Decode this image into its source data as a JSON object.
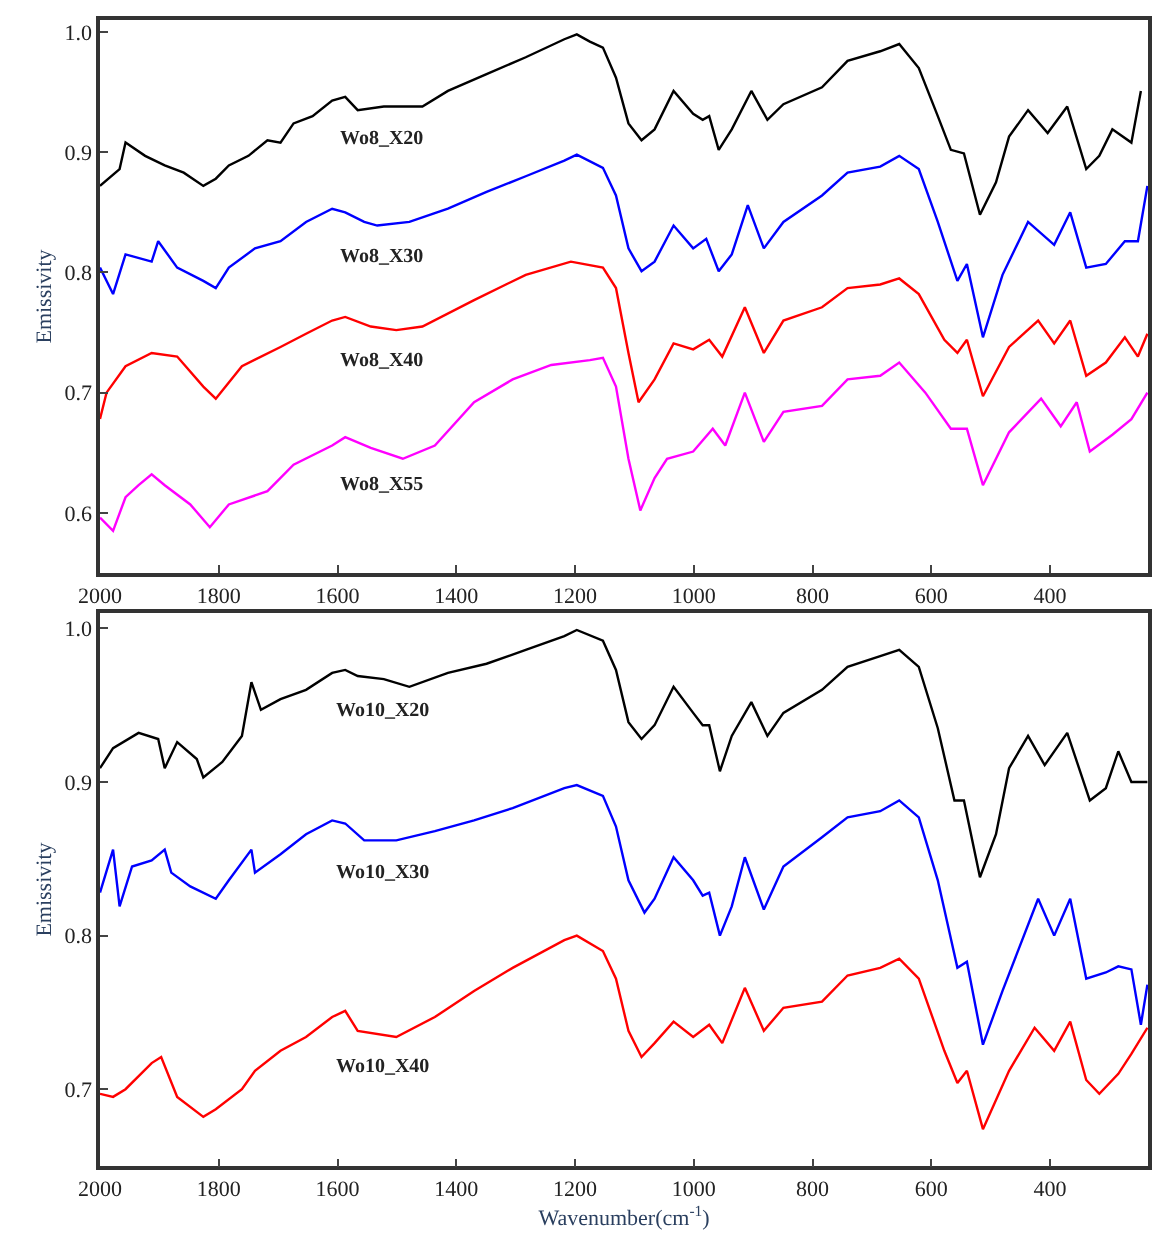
{
  "chart_data": [
    {
      "type": "line",
      "ylabel": "Emissivity",
      "xlim": [
        2000,
        235
      ],
      "xticks": [
        2000,
        1800,
        1600,
        1400,
        1200,
        1000,
        800,
        600,
        400
      ],
      "ylim": [
        0.55,
        1.01
      ],
      "yticks": [
        {
          "value": 0.6,
          "label": "0.6"
        },
        {
          "value": 0.7,
          "label": "0.7"
        },
        {
          "value": 0.8,
          "label": "0.8"
        },
        {
          "value": 0.9,
          "label": "0.9"
        },
        {
          "value": 1.0,
          "label": "1.0"
        }
      ],
      "legend": false,
      "series": [
        {
          "name": "Wo8_X20",
          "color": "#000000",
          "x": [
            2000,
            1967,
            1957,
            1924,
            1891,
            1859,
            1826,
            1805,
            1783,
            1750,
            1718,
            1696,
            1674,
            1642,
            1609,
            1587,
            1566,
            1522,
            1457,
            1414,
            1349,
            1283,
            1218,
            1197,
            1175,
            1153,
            1131,
            1110,
            1088,
            1066,
            1034,
            1001,
            985,
            974,
            958,
            936,
            903,
            876,
            849,
            784,
            741,
            686,
            654,
            621,
            589,
            567,
            545,
            518,
            491,
            469,
            437,
            404,
            371,
            339,
            317,
            295,
            263,
            247
          ],
          "values": [
            0.872,
            0.886,
            0.908,
            0.897,
            0.889,
            0.883,
            0.872,
            0.878,
            0.889,
            0.897,
            0.91,
            0.908,
            0.924,
            0.93,
            0.943,
            0.946,
            0.935,
            0.938,
            0.938,
            0.951,
            0.965,
            0.979,
            0.994,
            0.998,
            0.992,
            0.987,
            0.962,
            0.924,
            0.91,
            0.919,
            0.951,
            0.932,
            0.927,
            0.93,
            0.902,
            0.919,
            0.951,
            0.927,
            0.94,
            0.954,
            0.976,
            0.984,
            0.99,
            0.97,
            0.93,
            0.902,
            0.899,
            0.848,
            0.875,
            0.913,
            0.935,
            0.916,
            0.938,
            0.886,
            0.897,
            0.919,
            0.908,
            0.951
          ]
        },
        {
          "name": "Wo8_X30",
          "color": "#0000ff",
          "x": [
            2000,
            1978,
            1957,
            1913,
            1902,
            1870,
            1826,
            1805,
            1783,
            1739,
            1696,
            1653,
            1609,
            1587,
            1555,
            1533,
            1479,
            1414,
            1349,
            1283,
            1218,
            1197,
            1153,
            1131,
            1110,
            1088,
            1066,
            1034,
            1001,
            979,
            958,
            936,
            909,
            882,
            849,
            784,
            741,
            686,
            654,
            621,
            589,
            556,
            540,
            513,
            480,
            437,
            393,
            366,
            339,
            306,
            274,
            252,
            236
          ],
          "values": [
            0.804,
            0.782,
            0.815,
            0.809,
            0.826,
            0.804,
            0.793,
            0.787,
            0.804,
            0.82,
            0.826,
            0.842,
            0.853,
            0.85,
            0.842,
            0.839,
            0.842,
            0.853,
            0.867,
            0.88,
            0.893,
            0.898,
            0.887,
            0.864,
            0.82,
            0.801,
            0.809,
            0.839,
            0.82,
            0.828,
            0.801,
            0.815,
            0.856,
            0.82,
            0.842,
            0.864,
            0.883,
            0.888,
            0.897,
            0.886,
            0.842,
            0.793,
            0.807,
            0.746,
            0.798,
            0.842,
            0.823,
            0.85,
            0.804,
            0.807,
            0.826,
            0.826,
            0.872
          ]
        },
        {
          "name": "Wo8_X40",
          "color": "#ff0000",
          "x": [
            2000,
            1989,
            1957,
            1913,
            1870,
            1826,
            1805,
            1761,
            1696,
            1653,
            1609,
            1587,
            1544,
            1501,
            1457,
            1370,
            1283,
            1207,
            1153,
            1131,
            1110,
            1093,
            1066,
            1034,
            1001,
            974,
            952,
            914,
            882,
            849,
            784,
            741,
            686,
            654,
            621,
            578,
            556,
            540,
            513,
            469,
            420,
            393,
            366,
            339,
            306,
            274,
            252,
            236
          ],
          "values": [
            0.678,
            0.7,
            0.722,
            0.733,
            0.73,
            0.705,
            0.695,
            0.722,
            0.738,
            0.749,
            0.76,
            0.763,
            0.755,
            0.752,
            0.755,
            0.777,
            0.798,
            0.809,
            0.804,
            0.787,
            0.733,
            0.692,
            0.711,
            0.741,
            0.736,
            0.744,
            0.73,
            0.771,
            0.733,
            0.76,
            0.771,
            0.787,
            0.79,
            0.795,
            0.782,
            0.744,
            0.733,
            0.744,
            0.697,
            0.738,
            0.76,
            0.741,
            0.76,
            0.714,
            0.725,
            0.746,
            0.73,
            0.749
          ]
        },
        {
          "name": "Wo8_X55",
          "color": "#ff00ff",
          "x": [
            2000,
            1978,
            1957,
            1935,
            1913,
            1891,
            1848,
            1815,
            1783,
            1718,
            1674,
            1609,
            1587,
            1544,
            1490,
            1436,
            1370,
            1305,
            1240,
            1175,
            1153,
            1131,
            1110,
            1090,
            1066,
            1045,
            1001,
            968,
            947,
            914,
            882,
            849,
            784,
            741,
            686,
            654,
            610,
            567,
            540,
            513,
            469,
            415,
            382,
            355,
            333,
            295,
            263,
            236
          ],
          "values": [
            0.596,
            0.585,
            0.613,
            0.623,
            0.632,
            0.623,
            0.607,
            0.588,
            0.607,
            0.618,
            0.64,
            0.656,
            0.663,
            0.654,
            0.645,
            0.656,
            0.692,
            0.711,
            0.723,
            0.727,
            0.729,
            0.705,
            0.645,
            0.602,
            0.629,
            0.645,
            0.651,
            0.67,
            0.656,
            0.7,
            0.659,
            0.684,
            0.689,
            0.711,
            0.714,
            0.725,
            0.7,
            0.67,
            0.67,
            0.623,
            0.667,
            0.695,
            0.672,
            0.692,
            0.651,
            0.665,
            0.678,
            0.7
          ]
        }
      ]
    },
    {
      "type": "line",
      "ylabel": "Emissivity",
      "xlabel": "Wavenumber(cm$^{-1}$)",
      "xlim": [
        2000,
        235
      ],
      "xticks": [
        2000,
        1800,
        1600,
        1400,
        1200,
        1000,
        800,
        600,
        400
      ],
      "ylim": [
        0.65,
        1.01
      ],
      "yticks": [
        {
          "value": 0.7,
          "label": "0.7"
        },
        {
          "value": 0.8,
          "label": "0.8"
        },
        {
          "value": 0.9,
          "label": "0.9"
        },
        {
          "value": 1.0,
          "label": "1.0"
        }
      ],
      "legend": false,
      "series": [
        {
          "name": "Wo10_X20",
          "color": "#000000",
          "x": [
            2000,
            1978,
            1935,
            1902,
            1891,
            1870,
            1837,
            1826,
            1794,
            1761,
            1745,
            1729,
            1696,
            1653,
            1609,
            1587,
            1566,
            1522,
            1479,
            1414,
            1349,
            1283,
            1218,
            1197,
            1153,
            1131,
            1110,
            1088,
            1066,
            1034,
            1001,
            985,
            974,
            956,
            936,
            903,
            876,
            849,
            784,
            741,
            686,
            654,
            621,
            589,
            561,
            545,
            518,
            491,
            469,
            437,
            409,
            371,
            333,
            306,
            285,
            263,
            236
          ],
          "values": [
            0.909,
            0.922,
            0.932,
            0.928,
            0.909,
            0.926,
            0.915,
            0.903,
            0.913,
            0.93,
            0.965,
            0.947,
            0.954,
            0.96,
            0.971,
            0.973,
            0.969,
            0.967,
            0.962,
            0.971,
            0.977,
            0.986,
            0.995,
            0.999,
            0.992,
            0.973,
            0.939,
            0.928,
            0.937,
            0.962,
            0.945,
            0.937,
            0.937,
            0.907,
            0.93,
            0.952,
            0.93,
            0.945,
            0.96,
            0.975,
            0.982,
            0.986,
            0.975,
            0.935,
            0.888,
            0.888,
            0.838,
            0.866,
            0.909,
            0.93,
            0.911,
            0.932,
            0.888,
            0.896,
            0.92,
            0.9,
            0.9
          ]
        },
        {
          "name": "Wo10_X30",
          "color": "#0000ff",
          "x": [
            2000,
            1978,
            1967,
            1946,
            1913,
            1891,
            1880,
            1848,
            1805,
            1783,
            1745,
            1739,
            1696,
            1653,
            1609,
            1587,
            1555,
            1501,
            1436,
            1370,
            1305,
            1218,
            1197,
            1153,
            1131,
            1110,
            1083,
            1066,
            1034,
            1001,
            985,
            974,
            956,
            936,
            914,
            882,
            849,
            784,
            741,
            686,
            654,
            621,
            589,
            556,
            540,
            513,
            480,
            420,
            393,
            366,
            339,
            306,
            285,
            263,
            247,
            236
          ],
          "values": [
            0.828,
            0.856,
            0.819,
            0.845,
            0.849,
            0.856,
            0.841,
            0.832,
            0.824,
            0.836,
            0.856,
            0.841,
            0.853,
            0.866,
            0.875,
            0.873,
            0.862,
            0.862,
            0.868,
            0.875,
            0.883,
            0.896,
            0.898,
            0.891,
            0.871,
            0.836,
            0.815,
            0.824,
            0.851,
            0.836,
            0.826,
            0.828,
            0.8,
            0.819,
            0.851,
            0.817,
            0.845,
            0.864,
            0.877,
            0.881,
            0.888,
            0.877,
            0.836,
            0.779,
            0.783,
            0.729,
            0.764,
            0.824,
            0.8,
            0.824,
            0.772,
            0.776,
            0.78,
            0.778,
            0.742,
            0.768
          ]
        },
        {
          "name": "Wo10_X40",
          "color": "#ff0000",
          "x": [
            2000,
            1978,
            1957,
            1913,
            1897,
            1870,
            1826,
            1805,
            1761,
            1739,
            1696,
            1653,
            1609,
            1587,
            1566,
            1501,
            1436,
            1370,
            1305,
            1218,
            1197,
            1153,
            1131,
            1110,
            1088,
            1066,
            1034,
            1001,
            974,
            952,
            914,
            882,
            849,
            784,
            741,
            686,
            654,
            621,
            578,
            556,
            540,
            513,
            469,
            426,
            393,
            366,
            339,
            317,
            285,
            263,
            236
          ],
          "values": [
            0.697,
            0.695,
            0.7,
            0.717,
            0.721,
            0.695,
            0.682,
            0.687,
            0.7,
            0.712,
            0.725,
            0.734,
            0.747,
            0.751,
            0.738,
            0.734,
            0.747,
            0.764,
            0.779,
            0.797,
            0.8,
            0.79,
            0.772,
            0.738,
            0.721,
            0.73,
            0.744,
            0.734,
            0.742,
            0.73,
            0.766,
            0.738,
            0.753,
            0.757,
            0.774,
            0.779,
            0.785,
            0.772,
            0.725,
            0.704,
            0.712,
            0.674,
            0.712,
            0.74,
            0.725,
            0.744,
            0.706,
            0.697,
            0.71,
            0.723,
            0.74
          ]
        }
      ]
    }
  ]
}
